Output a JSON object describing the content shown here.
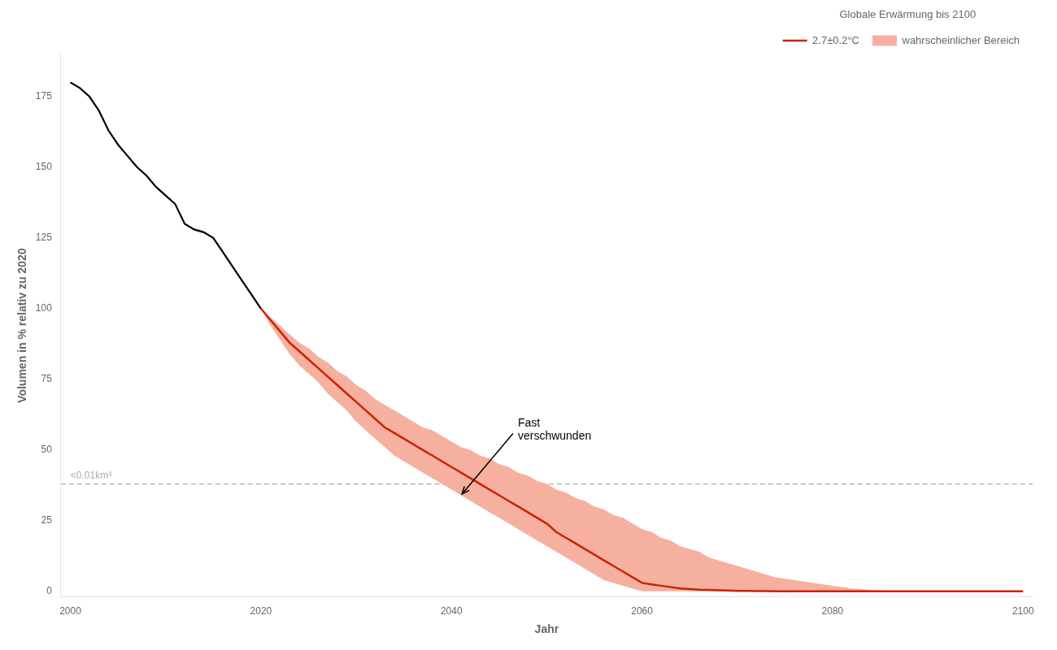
{
  "chart_data": {
    "type": "line",
    "x_label": "Jahr",
    "y_label": "Volumen in % relativ zu 2020",
    "legend_title": "Globale Erwärmung bis 2100",
    "legend": "top-right",
    "grid": false,
    "xlim": [
      1999,
      2101
    ],
    "ylim": [
      -2,
      190
    ],
    "xticks": [
      2000,
      2020,
      2040,
      2060,
      2080,
      2100
    ],
    "yticks": [
      0,
      25,
      50,
      75,
      100,
      125,
      150,
      175
    ],
    "series": [
      {
        "type": "line",
        "color": "#000000",
        "x": [
          2000,
          2001,
          2002,
          2003,
          2004,
          2005,
          2006,
          2007,
          2008,
          2009,
          2010,
          2011,
          2012,
          2013,
          2014,
          2015,
          2016,
          2017,
          2018,
          2019,
          2020
        ],
        "values": [
          180,
          178,
          175,
          170,
          163,
          158,
          154,
          150,
          147,
          143,
          140,
          137,
          130,
          128,
          127,
          125,
          120,
          115,
          110,
          105,
          100
        ]
      },
      {
        "name": "2.7±0.2°C",
        "type": "line",
        "color": "#cc2200",
        "x": [
          2020,
          2021,
          2022,
          2023,
          2024,
          2025,
          2026,
          2027,
          2028,
          2029,
          2030,
          2031,
          2032,
          2033,
          2034,
          2035,
          2036,
          2037,
          2038,
          2039,
          2040,
          2041,
          2042,
          2043,
          2044,
          2045,
          2046,
          2047,
          2048,
          2049,
          2050,
          2051,
          2052,
          2053,
          2054,
          2055,
          2056,
          2057,
          2058,
          2059,
          2060,
          2061,
          2062,
          2063,
          2064,
          2065,
          2066,
          2067,
          2068,
          2069,
          2070,
          2071,
          2072,
          2073,
          2074,
          2075,
          2076,
          2077,
          2078,
          2079,
          2080,
          2081,
          2082,
          2083,
          2084,
          2085,
          2086,
          2087,
          2088,
          2089,
          2090,
          2091,
          2092,
          2093,
          2094,
          2095,
          2096,
          2097,
          2098,
          2099,
          2100
        ],
        "values": [
          100,
          96,
          92,
          88,
          85,
          82,
          79,
          76,
          73,
          70,
          67,
          64,
          61,
          58,
          56,
          54,
          52,
          50,
          48,
          46,
          44,
          42,
          40,
          38,
          36,
          34,
          32,
          30,
          28,
          26,
          24,
          21,
          19,
          17,
          15,
          13,
          11,
          9,
          7,
          5,
          3,
          2.5,
          2,
          1.5,
          1,
          0.8,
          0.6,
          0.5,
          0.4,
          0.3,
          0.2,
          0.15,
          0.1,
          0.08,
          0.06,
          0.05,
          0.04,
          0.03,
          0.02,
          0.01,
          0,
          0,
          0,
          0,
          0,
          0,
          0,
          0,
          0,
          0,
          0,
          0,
          0,
          0,
          0,
          0,
          0,
          0,
          0,
          0,
          0
        ]
      },
      {
        "name": "wahrscheinlicher Bereich",
        "type": "band",
        "color": "#f5b0a0",
        "x": [
          2020,
          2021,
          2022,
          2023,
          2024,
          2025,
          2026,
          2027,
          2028,
          2029,
          2030,
          2031,
          2032,
          2033,
          2034,
          2035,
          2036,
          2037,
          2038,
          2039,
          2040,
          2041,
          2042,
          2043,
          2044,
          2045,
          2046,
          2047,
          2048,
          2049,
          2050,
          2051,
          2052,
          2053,
          2054,
          2055,
          2056,
          2057,
          2058,
          2059,
          2060,
          2061,
          2062,
          2063,
          2064,
          2065,
          2066,
          2067,
          2068,
          2069,
          2070,
          2071,
          2072,
          2073,
          2074,
          2075,
          2076,
          2077,
          2078,
          2079,
          2080,
          2081,
          2082,
          2083,
          2084,
          2085,
          2086,
          2087,
          2088,
          2089,
          2090,
          2091,
          2092,
          2093,
          2094,
          2095,
          2096,
          2097,
          2098,
          2099,
          2100
        ],
        "upper": [
          100,
          97,
          94,
          91,
          88,
          86,
          83,
          81,
          78,
          76,
          73,
          71,
          68,
          66,
          64,
          62,
          60,
          58,
          57,
          55,
          53,
          51,
          50,
          48,
          47,
          45,
          44,
          42,
          41,
          39,
          38,
          36,
          35,
          33,
          32,
          30,
          29,
          27,
          26,
          24,
          22,
          21,
          19,
          18,
          16,
          15,
          14,
          12,
          11,
          10,
          9,
          8,
          7,
          6,
          5,
          4.5,
          4,
          3.5,
          3,
          2.5,
          2,
          1.5,
          1,
          0.8,
          0.5,
          0.3,
          0.2,
          0.1,
          0.05,
          0.02,
          0,
          0,
          0,
          0,
          0,
          0,
          0,
          0,
          0,
          0,
          0
        ],
        "lower": [
          100,
          94,
          89,
          84,
          80,
          77,
          74,
          70,
          67,
          64,
          60,
          57,
          54,
          51,
          48,
          46,
          44,
          42,
          40,
          38,
          36,
          34,
          32,
          30,
          28,
          26,
          24,
          22,
          20,
          18,
          16,
          14,
          12,
          10,
          8,
          6,
          4,
          3,
          2,
          1,
          0,
          0,
          0,
          0,
          0,
          0,
          0,
          0,
          0,
          0,
          0,
          0,
          0,
          0,
          0,
          0,
          0,
          0,
          0,
          0,
          0,
          0,
          0,
          0,
          0,
          0,
          0,
          0,
          0,
          0,
          0,
          0,
          0,
          0,
          0,
          0,
          0,
          0,
          0,
          0,
          0
        ]
      }
    ],
    "annotations": [
      {
        "type": "hline",
        "value": 38,
        "text": "<0.01km³",
        "color": "#aaaaaa",
        "line_style": "dashed"
      },
      {
        "type": "arrow",
        "text": "Fast\nverschwunden",
        "x": 2041,
        "y": 34
      }
    ]
  }
}
